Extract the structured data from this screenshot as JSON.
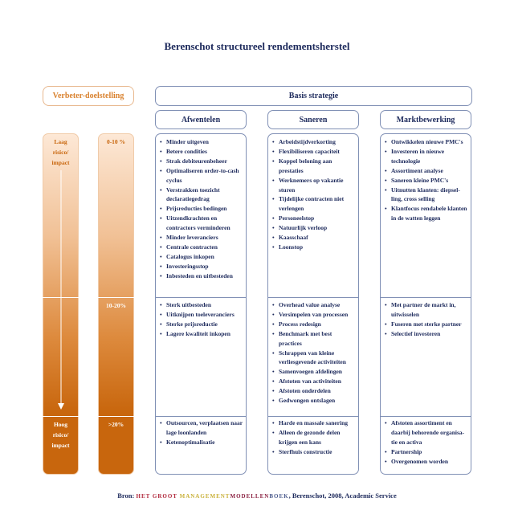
{
  "title": "Berenschot structureel rendementsherstel",
  "left_header": "Verbeter-doelstelling",
  "right_header": "Basis strategie",
  "risk": {
    "top": [
      "Laag",
      "risico/",
      "impact"
    ],
    "bottom": [
      "Hoog",
      "risico/",
      "impact"
    ]
  },
  "targets": [
    "0-10 %",
    "10-20%",
    ">20%"
  ],
  "columns": [
    {
      "header": "Afwentelen",
      "rows": [
        [
          "Minder uitgeven",
          "Betere condities",
          "Strak debiteurenbeheer",
          "Optimaliseren order-to-cash cyclus",
          "Verstrakken toezicht declaratiegedrag",
          "Prijsreducties bedingen",
          "Uitzendkrachten en contractors verminderen",
          "Minder leveranciers",
          "Centrale contracten",
          "Catalogus inkopen",
          "Investeringsstop",
          "Inbesteden en uitbesteden"
        ],
        [
          "Sterk uitbesteden",
          "Uitknijpen toeleveranciers",
          "Sterke prijsreductie",
          "Lagere kwaliteit inkopen"
        ],
        [
          "Outsourcen, verplaatsen naar lage loonlanden",
          "Ketenoptimalisatie"
        ]
      ]
    },
    {
      "header": "Saneren",
      "rows": [
        [
          "Arbeidstijdverkorting",
          "Flexibiliseren capaciteit",
          "Koppel beloning aan prestaties",
          "Werknemers op vakantie sturen",
          "Tijdelijke contracten niet verlengen",
          "Personeelstop",
          "Natuurlijk verloop",
          "Kaasschaaf",
          "Loonstop"
        ],
        [
          "Overhead value analyse",
          "Versimpelen van processen",
          "Process redesign",
          "Benchmark met best practices",
          "Schrappen van kleine verliesgevende activiteiten",
          "Samenvoegen afdelingen",
          "Afstoten van activiteiten",
          "Afstoten onderdelen",
          "Gedwongen ontslagen"
        ],
        [
          "Harde en massale sanering",
          "Alleen de gezonde delen krijgen een kans",
          "Sterfhuis constructie"
        ]
      ]
    },
    {
      "header": "Marktbewerking",
      "rows": [
        [
          "Ontwikkelen nieuwe PMC's",
          "Investeren in nieuwe technologie",
          "Assortiment analyse",
          "Saneren kleine PMC's",
          "Uitnutten klanten: diepsel-ling, cross selling",
          "Klantfocus rendabele klanten in de watten leggen"
        ],
        [
          "Met partner de markt in, uitwisselen",
          "Fuseren met sterke partner",
          "Selectief investeren"
        ],
        [
          "Afstoten assortiment en daarbij behorende organisa-tie en activa",
          "Partnership",
          "Overgenomen worden"
        ]
      ]
    }
  ],
  "source": {
    "prefix": "Bron: ",
    "w1": "HET GROOT ",
    "w2": "MANAGEMENT",
    "w3": "MODELLEN",
    "w4": "BOEK",
    "suffix": ", Berenschot, 2008, Academic Service"
  },
  "colors": {
    "orange": "#c8660d",
    "navy": "#1d2a5c",
    "border": "#8090b5"
  }
}
